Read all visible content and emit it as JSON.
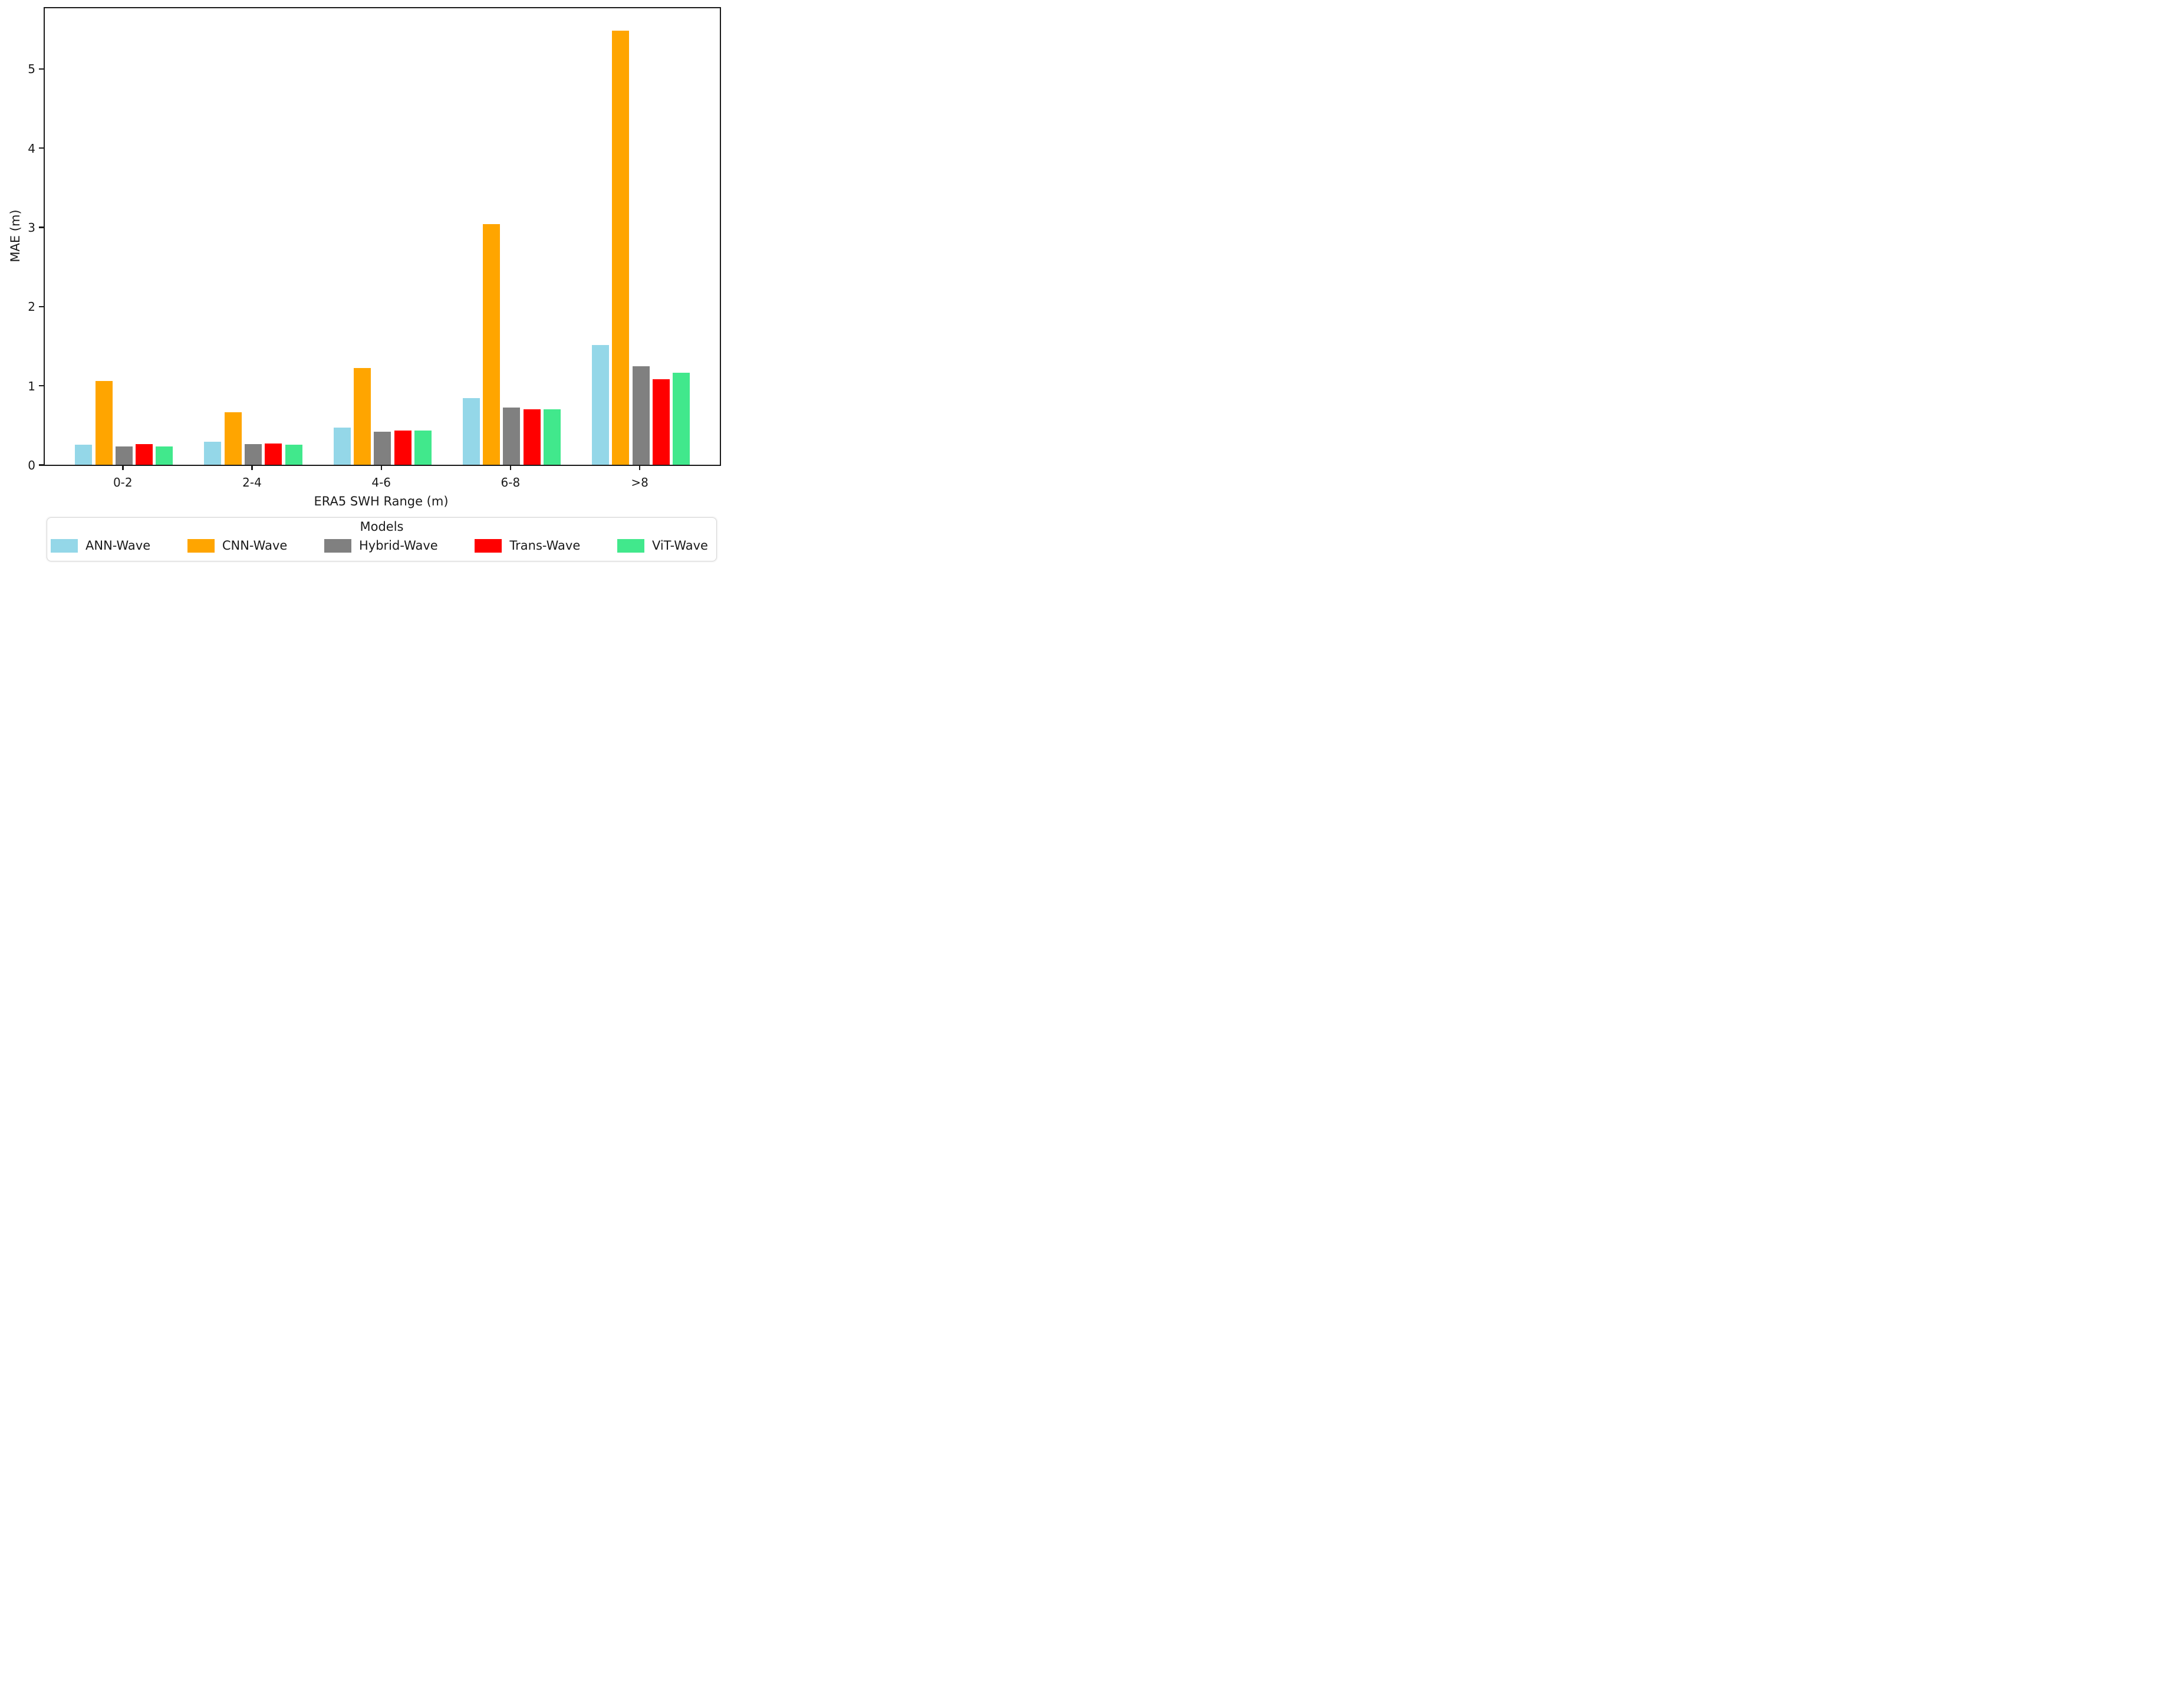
{
  "chart_data": {
    "type": "bar",
    "title": "",
    "xlabel": "ERA5 SWH Range (m)",
    "ylabel": "MAE (m)",
    "categories": [
      "0-2",
      "2-4",
      "4-6",
      "6-8",
      ">8"
    ],
    "series": [
      {
        "name": "ANN-Wave",
        "color": "#94D7E8",
        "values": [
          0.25,
          0.29,
          0.47,
          0.84,
          1.51
        ]
      },
      {
        "name": "CNN-Wave",
        "color": "#FFA500",
        "values": [
          1.06,
          0.66,
          1.22,
          3.04,
          5.48
        ]
      },
      {
        "name": "Hybrid-Wave",
        "color": "#808080",
        "values": [
          0.23,
          0.26,
          0.42,
          0.72,
          1.24
        ]
      },
      {
        "name": "Trans-Wave",
        "color": "#FF0000",
        "values": [
          0.26,
          0.27,
          0.43,
          0.7,
          1.08
        ]
      },
      {
        "name": "ViT-Wave",
        "color": "#41E88C",
        "values": [
          0.23,
          0.25,
          0.43,
          0.7,
          1.16
        ]
      }
    ],
    "ylim": [
      0,
      5.76
    ],
    "yticks": [
      0,
      1,
      2,
      3,
      4,
      5
    ],
    "grid": false,
    "legend": {
      "title": "Models",
      "position": "bottom"
    },
    "axis_color": "#1a1a1a"
  }
}
